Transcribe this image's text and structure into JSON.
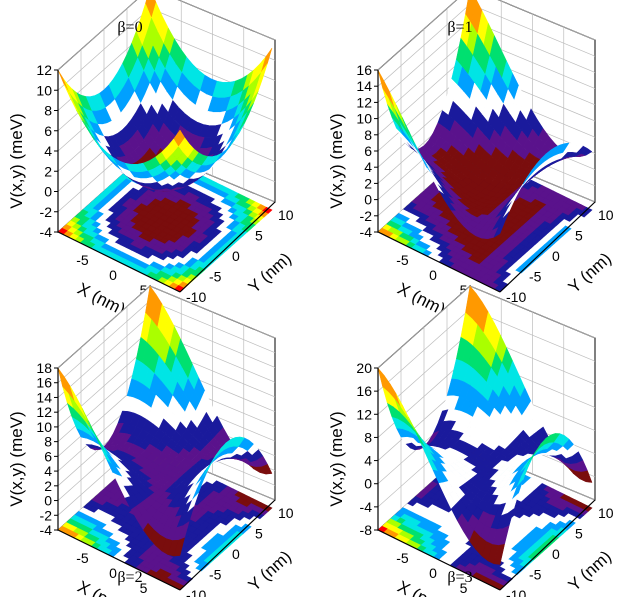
{
  "chart_data": [
    {
      "type": "surface3d",
      "title": "β=0",
      "beta": 0,
      "zlabel": "V(x,y) (meV)",
      "xlabel": "X (nm)",
      "ylabel": "Y (nm)",
      "zlim": [
        -4,
        12
      ],
      "z_ticks": [
        "12",
        "10",
        "8",
        "6",
        "4",
        "2",
        "0",
        "-2",
        "-4"
      ],
      "x_ticks": [
        "-5",
        "0",
        "5",
        "10"
      ],
      "y_ticks": [
        "10",
        "5",
        "0",
        "-5",
        "-10"
      ],
      "x_range": [
        -10,
        10
      ],
      "y_range": [
        -10,
        10
      ],
      "surface_z_min": 0,
      "surface_z_max": 12,
      "contour_projection": "bottom"
    },
    {
      "type": "surface3d",
      "title": "β=1",
      "beta": 1,
      "zlabel": "V(x,y) (meV)",
      "xlabel": "X (nm)",
      "ylabel": "Y (nm)",
      "zlim": [
        -4,
        16
      ],
      "z_ticks": [
        "16",
        "14",
        "12",
        "10",
        "8",
        "6",
        "4",
        "2",
        "0",
        "-2",
        "-4"
      ],
      "x_ticks": [
        "-5",
        "0",
        "5",
        "10"
      ],
      "y_ticks": [
        "10",
        "5",
        "0",
        "-5",
        "-10"
      ],
      "x_range": [
        -10,
        10
      ],
      "y_range": [
        -10,
        10
      ],
      "surface_z_min": 0,
      "surface_z_max": 16,
      "contour_projection": "bottom"
    },
    {
      "type": "surface3d",
      "title": "β=2",
      "beta": 2,
      "zlabel": "V(x,y) (meV)",
      "xlabel": "X (nm)",
      "ylabel": "Y (nm)",
      "zlim": [
        -4,
        18
      ],
      "z_ticks": [
        "18",
        "16",
        "14",
        "12",
        "10",
        "8",
        "6",
        "4",
        "2",
        "0",
        "-2",
        "-4"
      ],
      "x_ticks": [
        "-5",
        "0",
        "5",
        "10"
      ],
      "y_ticks": [
        "10",
        "5",
        "0",
        "-5",
        "-10"
      ],
      "x_range": [
        -10,
        10
      ],
      "y_range": [
        -10,
        10
      ],
      "surface_z_min": 0,
      "surface_z_max": 18,
      "contour_projection": "bottom"
    },
    {
      "type": "surface3d",
      "title": "β=3",
      "beta": 3,
      "zlabel": "V(x,y) (meV)",
      "xlabel": "X (nm)",
      "ylabel": "Y (nm)",
      "zlim": [
        -8,
        20
      ],
      "z_ticks": [
        "20",
        "16",
        "12",
        "8",
        "4",
        "0",
        "-4",
        "-8"
      ],
      "x_ticks": [
        "-5",
        "0",
        "5",
        "10"
      ],
      "y_ticks": [
        "10",
        "5",
        "0",
        "-5",
        "-10"
      ],
      "x_range": [
        -10,
        10
      ],
      "y_range": [
        -10,
        10
      ],
      "surface_z_min": -4,
      "surface_z_max": 20,
      "contour_projection": "bottom"
    }
  ],
  "colors": {
    "colormap": [
      "#7a0d0d",
      "#5a128c",
      "#1a1a9c",
      "#ffffff",
      "#00a0ff",
      "#00e5e5",
      "#00e070",
      "#aaff00",
      "#ffff00",
      "#ff9900",
      "#ff0000"
    ],
    "contour_line": "#ffffff",
    "grid": "#bdbdbd",
    "frame": "#000000"
  }
}
